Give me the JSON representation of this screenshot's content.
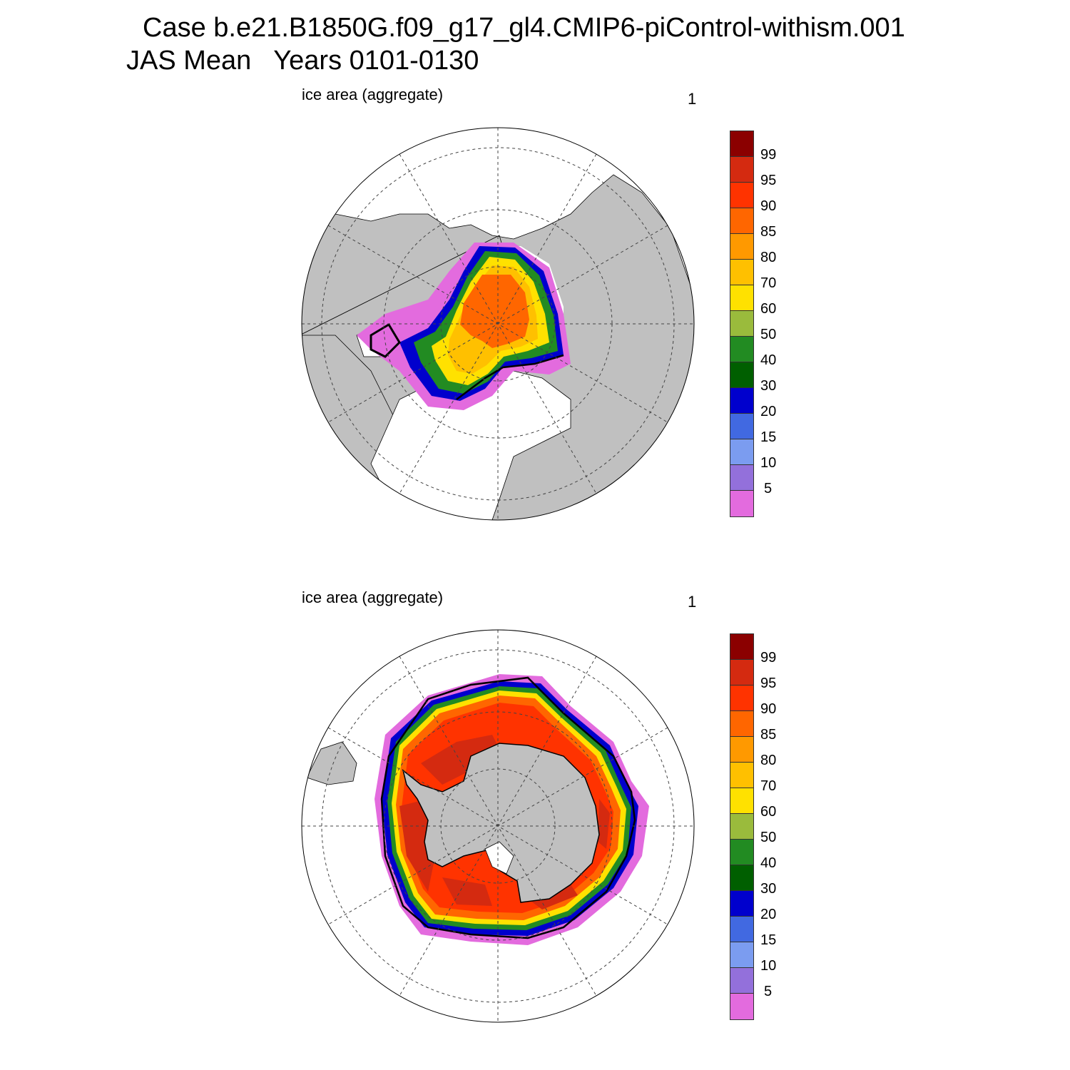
{
  "title_line1": "Case b.e21.B1850G.f09_g17_gl4.CMIP6-piControl-withism.001",
  "title_line2": "JAS Mean   Years 0101-0130",
  "panels": [
    {
      "label": "ice area  (aggregate)",
      "number": "1",
      "hemisphere": "north"
    },
    {
      "label": "ice area  (aggregate)",
      "number": "1",
      "hemisphere": "south"
    }
  ],
  "colorbar": {
    "labels": [
      "99",
      "95",
      "90",
      "85",
      "80",
      "70",
      "60",
      "50",
      "40",
      "30",
      "20",
      "15",
      "10",
      "5"
    ],
    "colors": [
      "#8b0000",
      "#d42a10",
      "#ff3300",
      "#ff6600",
      "#ff9900",
      "#ffc000",
      "#ffe100",
      "#9abb3c",
      "#228b22",
      "#005f00",
      "#0000cd",
      "#4169e1",
      "#7b9cf0",
      "#9370db",
      "#e36bde"
    ]
  },
  "colors": {
    "land": "#c0c0c0",
    "ocean": "#ffffff",
    "grid": "#444444"
  }
}
